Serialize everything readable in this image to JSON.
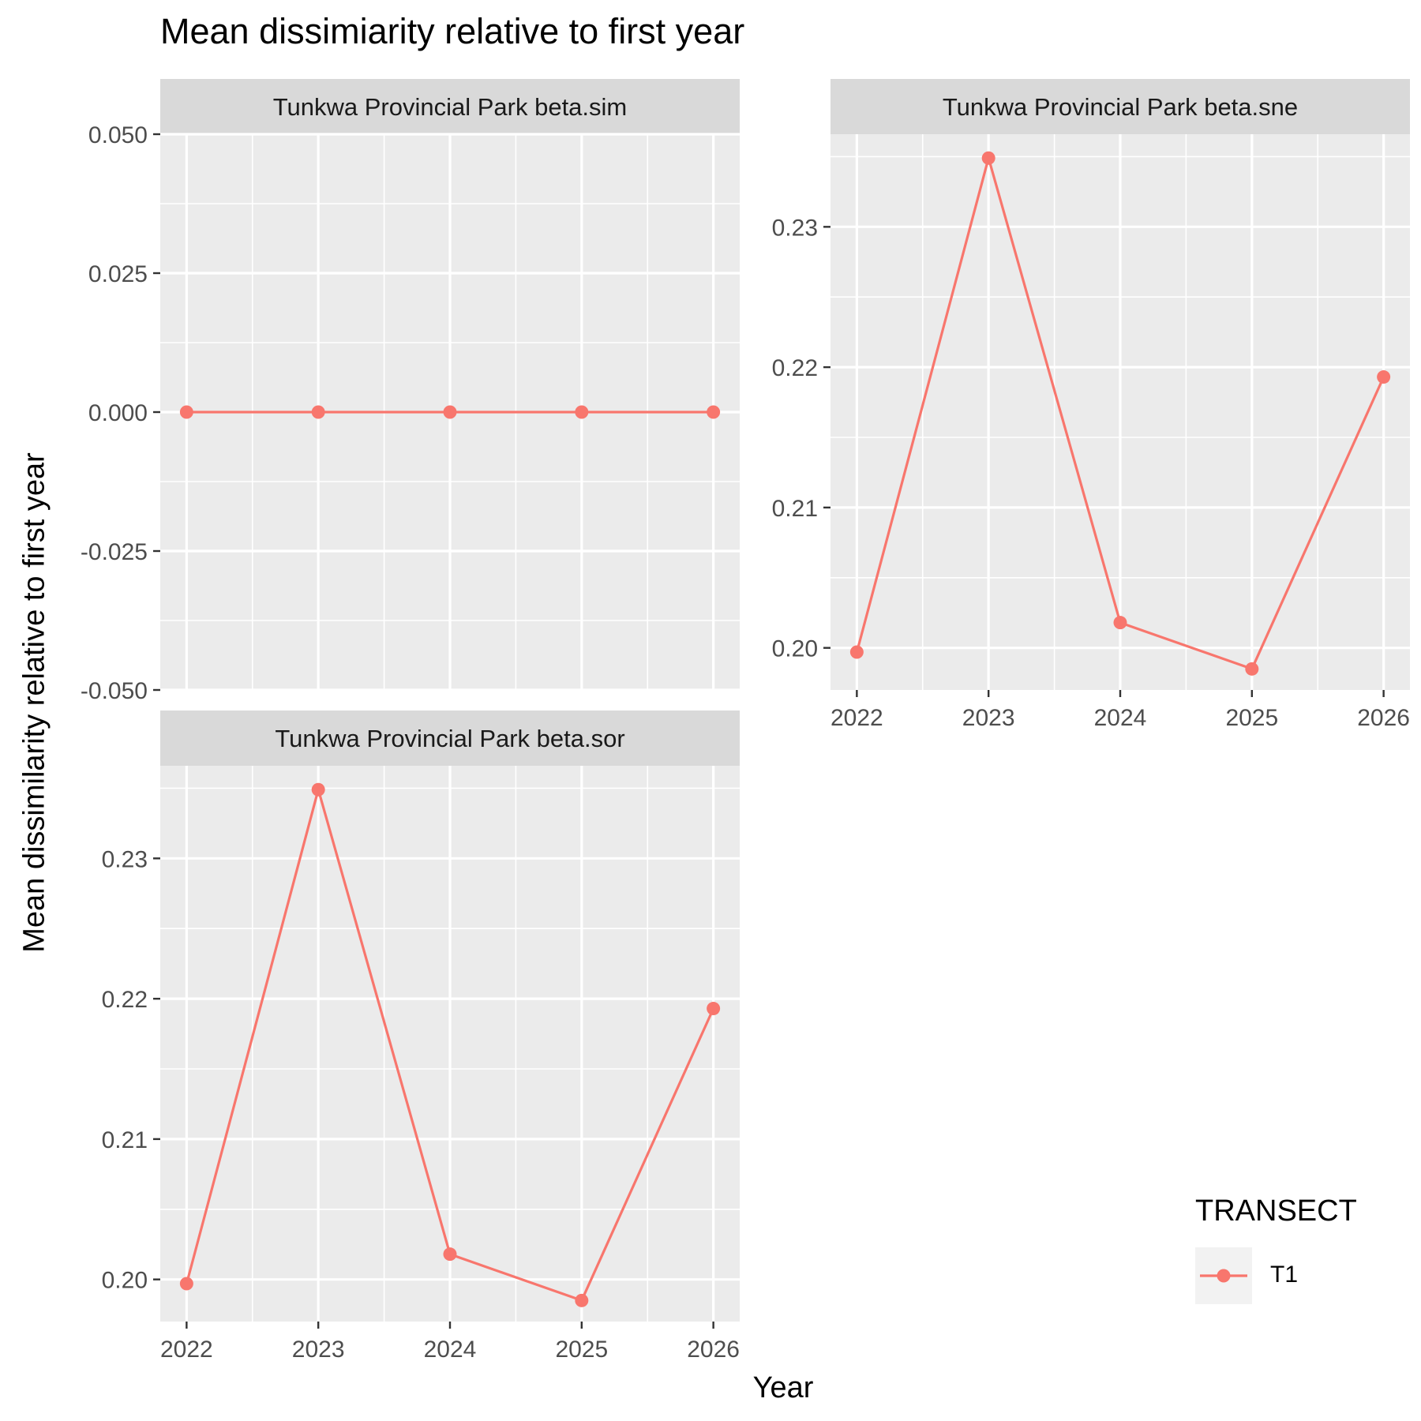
{
  "chart_data": {
    "type": "line",
    "title": "Mean dissimiarity relative to first year",
    "xlabel": "Year",
    "ylabel": "Mean dissimilarity relative to first year",
    "legend": {
      "title": "TRANSECT",
      "placement": "bottom-right",
      "entries": [
        "T1"
      ]
    },
    "color": "#F8766D",
    "grid": true,
    "panels": [
      {
        "strip": "Tunkwa Provincial Park beta.sim",
        "x": [
          2022,
          2023,
          2024,
          2025,
          2026
        ],
        "series": [
          {
            "name": "T1",
            "values": [
              0.0,
              0.0,
              0.0,
              0.0,
              0.0
            ]
          }
        ],
        "ylim": [
          -0.05,
          0.05
        ],
        "yticks": [
          "0.050",
          "0.025",
          "0.000",
          "-0.025",
          "-0.050"
        ],
        "xticks": [
          "2022",
          "2023",
          "2024",
          "2025",
          "2026"
        ]
      },
      {
        "strip": "Tunkwa Provincial Park beta.sne",
        "x": [
          2022,
          2023,
          2024,
          2025,
          2026
        ],
        "series": [
          {
            "name": "T1",
            "values": [
              0.1997,
              0.2349,
              0.2018,
              0.1985,
              0.2193
            ]
          }
        ],
        "ylim": [
          0.197,
          0.2366
        ],
        "yticks": [
          "0.23",
          "0.22",
          "0.21",
          "0.20"
        ],
        "xticks": [
          "2022",
          "2023",
          "2024",
          "2025",
          "2026"
        ]
      },
      {
        "strip": "Tunkwa Provincial Park beta.sor",
        "x": [
          2022,
          2023,
          2024,
          2025,
          2026
        ],
        "series": [
          {
            "name": "T1",
            "values": [
              0.1997,
              0.2349,
              0.2018,
              0.1985,
              0.2193
            ]
          }
        ],
        "ylim": [
          0.197,
          0.2366
        ],
        "yticks": [
          "0.23",
          "0.22",
          "0.21",
          "0.20"
        ],
        "xticks": [
          "2022",
          "2023",
          "2024",
          "2025",
          "2026"
        ]
      }
    ]
  }
}
